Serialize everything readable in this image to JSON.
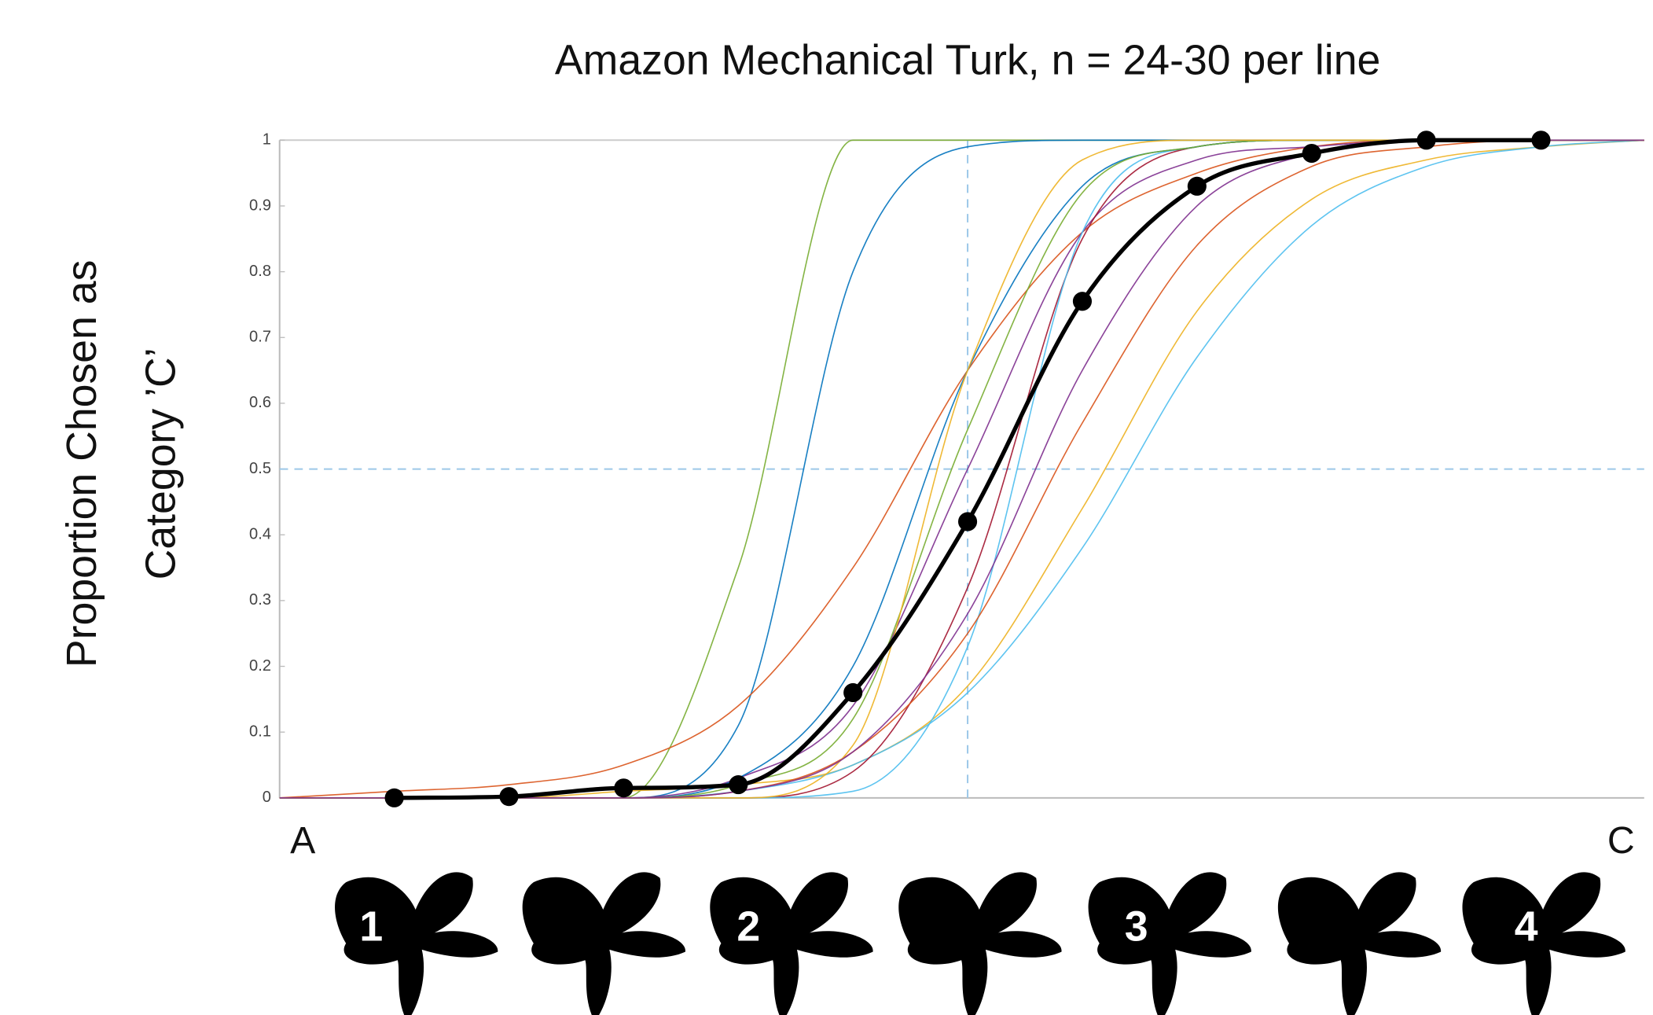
{
  "chart_data": {
    "type": "line",
    "title": "Amazon Mechanical Turk, n = 24-30 per line",
    "ylabel": [
      "Proportion Chosen as",
      "Category ’C’"
    ],
    "x_end_labels": [
      "A",
      "C"
    ],
    "stimulus_labels": [
      "1",
      "2",
      "3",
      "4"
    ],
    "x": [
      0,
      1,
      2,
      3,
      4,
      5,
      6,
      7,
      8,
      9,
      10,
      11,
      11.9
    ],
    "xlim": [
      0,
      11.9
    ],
    "ylim": [
      0,
      1
    ],
    "yticks": [
      0,
      0.1,
      0.2,
      0.3,
      0.4,
      0.5,
      0.6,
      0.7,
      0.8,
      0.9,
      1
    ],
    "hlines": [
      0.5
    ],
    "vlines": [
      6
    ],
    "series": [
      {
        "color": "#77ac30",
        "values": [
          0,
          0,
          0,
          0,
          0.35,
          1,
          1,
          1,
          1,
          1,
          1,
          1,
          1
        ]
      },
      {
        "color": "#0072bd",
        "values": [
          0,
          0,
          0,
          0,
          0.11,
          0.8,
          0.99,
          1,
          1,
          1,
          1,
          1,
          1
        ]
      },
      {
        "color": "#d95319",
        "values": [
          0,
          0.01,
          0.02,
          0.05,
          0.14,
          0.35,
          0.65,
          0.86,
          0.95,
          0.99,
          1,
          1,
          1
        ]
      },
      {
        "color": "#edb120",
        "values": [
          0,
          0,
          0,
          0.01,
          0.02,
          0.05,
          0.17,
          0.44,
          0.74,
          0.91,
          0.97,
          0.99,
          1
        ]
      },
      {
        "color": "#4dbeee",
        "values": [
          0,
          0,
          0,
          0,
          0.01,
          0.05,
          0.16,
          0.38,
          0.67,
          0.87,
          0.96,
          0.99,
          1
        ]
      },
      {
        "color": "#7e2f8e",
        "values": [
          0,
          0,
          0,
          0,
          0.03,
          0.14,
          0.5,
          0.86,
          0.97,
          0.99,
          1,
          1,
          1
        ]
      },
      {
        "color": "#a2142f",
        "values": [
          0,
          0,
          0,
          0,
          0,
          0.04,
          0.32,
          0.85,
          0.99,
          1,
          1,
          1,
          1
        ]
      },
      {
        "color": "#4dbeee",
        "values": [
          0,
          0,
          0,
          0,
          0,
          0.01,
          0.23,
          0.86,
          0.99,
          1,
          1,
          1,
          1
        ]
      },
      {
        "color": "#0072bd",
        "values": [
          0,
          0,
          0,
          0,
          0.03,
          0.2,
          0.65,
          0.93,
          0.99,
          1,
          1,
          1,
          1
        ]
      },
      {
        "color": "#77ac30",
        "values": [
          0,
          0,
          0,
          0,
          0.02,
          0.12,
          0.56,
          0.92,
          0.99,
          1,
          1,
          1,
          1
        ]
      },
      {
        "color": "#d95319",
        "values": [
          0,
          0,
          0,
          0,
          0.01,
          0.07,
          0.25,
          0.57,
          0.84,
          0.96,
          0.99,
          1,
          1
        ]
      },
      {
        "color": "#edb120",
        "values": [
          0,
          0,
          0,
          0,
          0,
          0.08,
          0.65,
          0.97,
          1,
          1,
          1,
          1,
          1
        ]
      },
      {
        "color": "#7e2f8e",
        "values": [
          0,
          0,
          0,
          0,
          0.01,
          0.07,
          0.28,
          0.65,
          0.9,
          0.98,
          1,
          1,
          1
        ]
      },
      {
        "color": "#000000",
        "markers": true,
        "x": [
          1,
          2,
          3,
          4,
          5,
          6,
          7,
          8,
          9,
          10,
          11
        ],
        "values": [
          0,
          0.002,
          0.015,
          0.02,
          0.16,
          0.42,
          0.755,
          0.93,
          0.98,
          1,
          1
        ]
      }
    ]
  }
}
